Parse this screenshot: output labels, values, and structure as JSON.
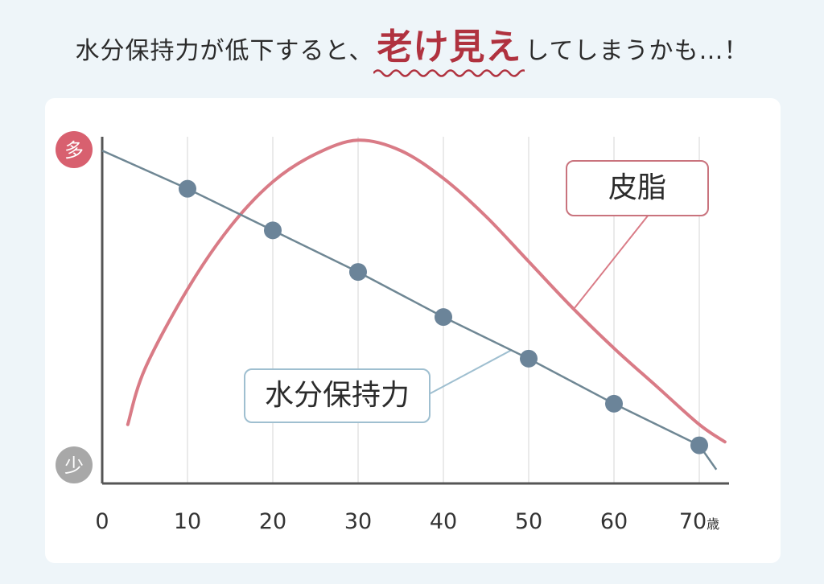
{
  "title": {
    "prefix": "水分保持力が低下すると、",
    "emphasis": "老け見え",
    "suffix": "してしまうかも…！"
  },
  "colors": {
    "sebum": "#d97b86",
    "water": "#6f8794",
    "marker": "#6b8499",
    "badge_high": "#d8606f",
    "badge_low": "#a8a8a8",
    "emphasis": "#b0323f"
  },
  "y_badges": {
    "high": "多",
    "low": "少"
  },
  "chart_data": {
    "type": "line",
    "title": "水分保持力が低下すると、老け見えしてしまうかも…！",
    "xlabel": "",
    "x_unit": "歳",
    "ylabel": "",
    "y_range_labels": [
      "少",
      "多"
    ],
    "xlim": [
      0,
      73
    ],
    "ylim": [
      0,
      100
    ],
    "x_ticks": [
      0,
      10,
      20,
      30,
      40,
      50,
      60,
      70
    ],
    "grid": true,
    "series": [
      {
        "name": "水分保持力",
        "x": [
          0,
          10,
          20,
          30,
          40,
          50,
          60,
          70,
          72
        ],
        "y": [
          96,
          85,
          73,
          61,
          48,
          36,
          23,
          11,
          4
        ],
        "markers_at": [
          10,
          20,
          30,
          40,
          50,
          60,
          70
        ]
      },
      {
        "name": "皮脂",
        "x": [
          3,
          5,
          10,
          15,
          20,
          25,
          30,
          35,
          40,
          45,
          50,
          55,
          60,
          65,
          70,
          73
        ],
        "y": [
          17,
          33,
          56,
          74,
          87,
          95,
          99,
          96,
          88,
          77,
          64,
          51,
          39,
          28,
          17,
          12
        ]
      }
    ],
    "annotations": [
      "皮脂",
      "水分保持力"
    ]
  }
}
